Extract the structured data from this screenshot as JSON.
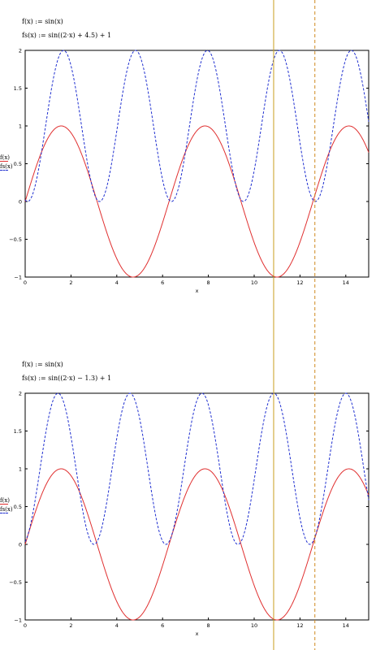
{
  "chart_data": [
    {
      "type": "line",
      "equations": [
        "f(x) := sin(x)",
        "fs(x) := sin((2·x) + 4.5) + 1"
      ],
      "legend": [
        "f(x)",
        "fs(x)"
      ],
      "xlabel": "x",
      "xlim": [
        0,
        15
      ],
      "ylim": [
        -1,
        2
      ],
      "xticks": [
        "0",
        "2",
        "4",
        "6",
        "8",
        "10",
        "12",
        "14"
      ],
      "yticks": [
        "−1",
        "−0.5",
        "0",
        "0.5",
        "1",
        "1.5",
        "2"
      ],
      "series": [
        {
          "name": "f(x)",
          "func": "sin",
          "amplitude": 1,
          "frequency": 1,
          "phase": 0,
          "offset": 0,
          "color": "#e03030",
          "style": "solid"
        },
        {
          "name": "fs(x)",
          "func": "sin",
          "amplitude": 1,
          "frequency": 2,
          "phase": 4.5,
          "offset": 1,
          "color": "#2030d0",
          "style": "dashed"
        }
      ]
    },
    {
      "type": "line",
      "equations": [
        "f(x) := sin(x)",
        "fs(x) := sin((2·x) − 1.3) + 1"
      ],
      "legend": [
        "f(x)",
        "fs(x)"
      ],
      "xlabel": "x",
      "xlim": [
        0,
        15
      ],
      "ylim": [
        -1,
        2
      ],
      "xticks": [
        "0",
        "2",
        "4",
        "6",
        "8",
        "10",
        "12",
        "14"
      ],
      "yticks": [
        "−1",
        "−0.5",
        "0",
        "0.5",
        "1",
        "1.5",
        "2"
      ],
      "series": [
        {
          "name": "f(x)",
          "func": "sin",
          "amplitude": 1,
          "frequency": 1,
          "phase": 0,
          "offset": 0,
          "color": "#e03030",
          "style": "solid"
        },
        {
          "name": "fs(x)",
          "func": "sin",
          "amplitude": 1,
          "frequency": 2,
          "phase": -1.3,
          "offset": 1,
          "color": "#2030d0",
          "style": "dashed"
        }
      ]
    }
  ],
  "cursors": [
    {
      "x": 10.85,
      "color": "#c8a020",
      "style": "solid"
    },
    {
      "x": 12.65,
      "color": "#d08a20",
      "style": "dashed"
    }
  ]
}
